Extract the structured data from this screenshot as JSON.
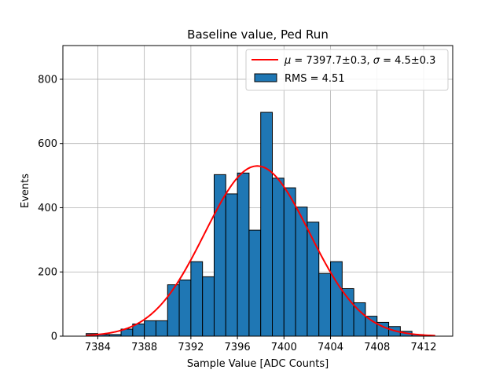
{
  "chart_data": {
    "type": "bar",
    "title": "Baseline value, Ped Run",
    "xlabel": "Sample Value [ADC Counts]",
    "ylabel": "Events",
    "xlim": [
      7381.0,
      7414.5
    ],
    "ylim": [
      0,
      905
    ],
    "xticks": [
      7384,
      7388,
      7392,
      7396,
      7400,
      7404,
      7408,
      7412
    ],
    "yticks": [
      0,
      200,
      400,
      600,
      800
    ],
    "grid": true,
    "legend_position": "top-right",
    "histogram": {
      "name": "RMS = 4.51",
      "bin_width": 1.0,
      "bin_edges_start": 7383,
      "values": [
        8,
        5,
        5,
        22,
        38,
        48,
        48,
        160,
        175,
        232,
        185,
        503,
        443,
        508,
        330,
        697,
        492,
        462,
        402,
        355,
        195,
        232,
        148,
        104,
        62,
        43,
        30,
        15,
        5
      ],
      "color": "#1f77b4",
      "edge_color": "#000000"
    },
    "fit": {
      "name": "μ = 7397.7±0.3, σ = 4.5±0.3",
      "legend_label_parts": {
        "mu_sym": "μ",
        "mu_text": " = 7397.7±0.3, ",
        "sigma_sym": "σ",
        "sigma_text": " = 4.5±0.3"
      },
      "type": "gaussian",
      "amplitude": 530,
      "mu": 7397.7,
      "sigma": 4.5,
      "x_range": [
        7383,
        7413
      ],
      "color": "#ff0000"
    }
  }
}
